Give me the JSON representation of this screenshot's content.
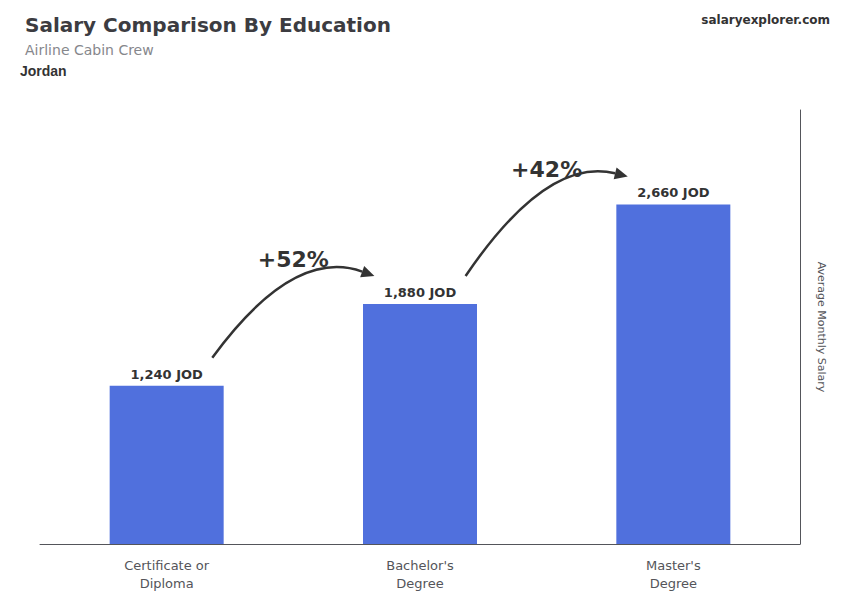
{
  "chart_data": {
    "type": "bar",
    "title": "Salary Comparison By Education",
    "subtitle": "Airline Cabin Crew",
    "ylabel": "Average Monthly Salary",
    "categories": [
      "Certificate or\nDiploma",
      "Bachelor's\nDegree",
      "Master's\nDegree"
    ],
    "values": [
      1240,
      1880,
      2660
    ],
    "value_labels": [
      "1,240 JOD",
      "1,880 JOD",
      "2,660 JOD"
    ],
    "data_labels": true,
    "ylim": [
      0,
      3400
    ],
    "yticks": [],
    "grid": false,
    "tick_labels": "x",
    "annotations": [
      {
        "text": "Jordan"
      },
      {
        "text": "salaryexplorer.com"
      },
      {
        "text": "+52%",
        "from": "Certificate or\nDiploma",
        "to": "Bachelor's\nDegree"
      },
      {
        "text": "+42%",
        "from": "Bachelor's\nDegree",
        "to": "Master's\nDegree"
      }
    ]
  }
}
